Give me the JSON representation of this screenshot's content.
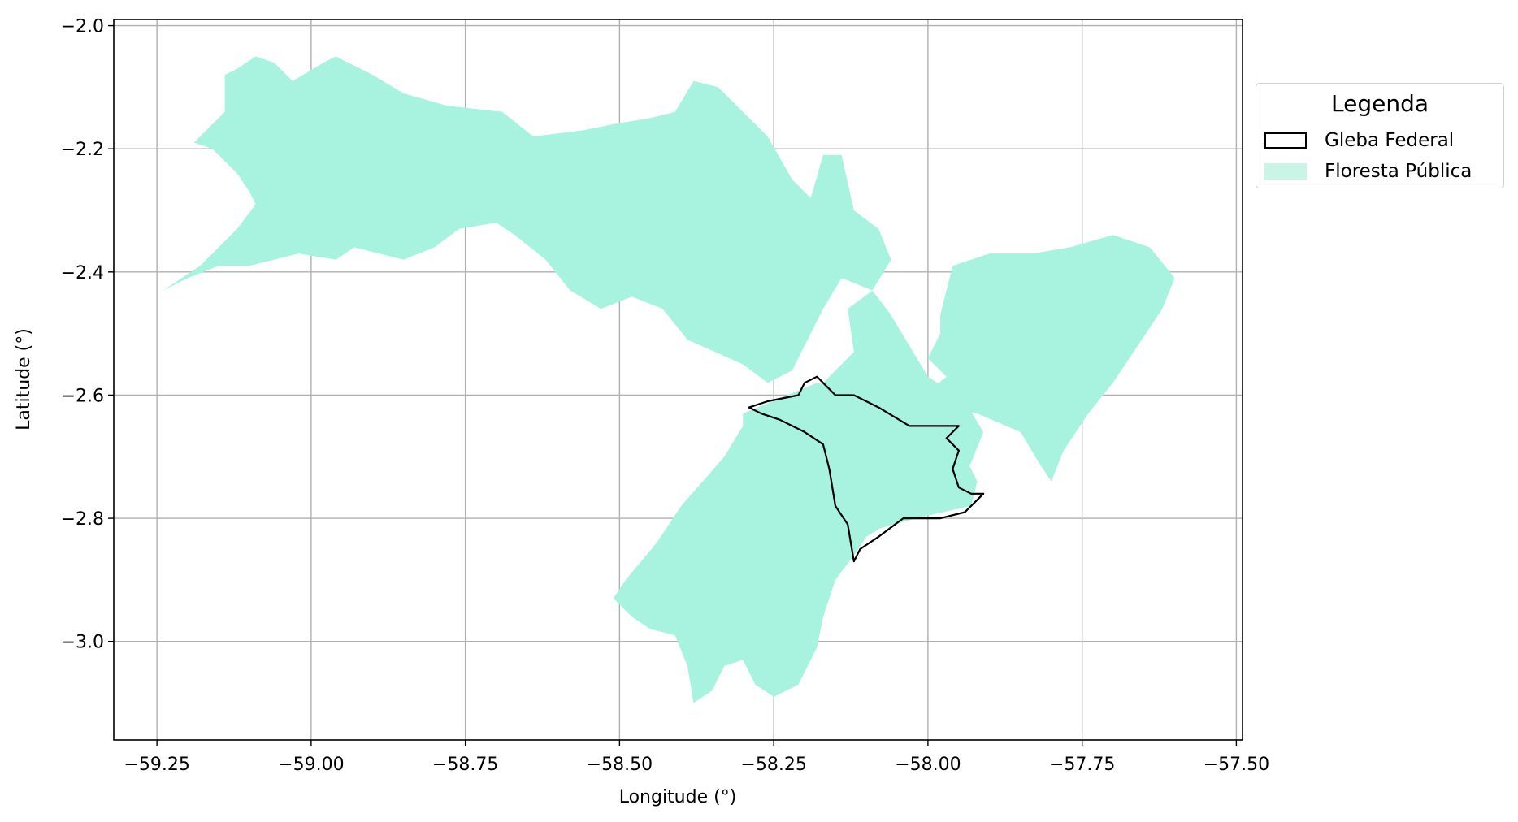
{
  "chart_data": {
    "type": "map",
    "xlabel": "Longitude (°)",
    "ylabel": "Latitude (°)",
    "xlim": [
      -59.32,
      -57.49
    ],
    "ylim": [
      -3.16,
      -1.99
    ],
    "x_ticks": [
      {
        "value": -59.25,
        "label": "−59.25"
      },
      {
        "value": -59.0,
        "label": "−59.00"
      },
      {
        "value": -58.75,
        "label": "−58.75"
      },
      {
        "value": -58.5,
        "label": "−58.50"
      },
      {
        "value": -58.25,
        "label": "−58.25"
      },
      {
        "value": -58.0,
        "label": "−58.00"
      },
      {
        "value": -57.75,
        "label": "−57.75"
      },
      {
        "value": -57.5,
        "label": "−57.50"
      }
    ],
    "y_ticks": [
      {
        "value": -2.0,
        "label": "−2.0"
      },
      {
        "value": -2.2,
        "label": "−2.2"
      },
      {
        "value": -2.4,
        "label": "−2.4"
      },
      {
        "value": -2.6,
        "label": "−2.6"
      },
      {
        "value": -2.8,
        "label": "−2.8"
      },
      {
        "value": -3.0,
        "label": "−3.0"
      }
    ],
    "grid": true,
    "legend_placement": "outside-right-top",
    "legend": {
      "title": "Legenda",
      "entries": [
        {
          "label": "Gleba Federal",
          "style": "outline",
          "color": "#000000"
        },
        {
          "label": "Floresta Pública",
          "style": "fill",
          "color": "#c8f5e6"
        }
      ]
    },
    "layers": [
      {
        "name": "Floresta Pública",
        "fill_color": "#a8f3df",
        "polygons": [
          [
            [
              -59.24,
              -2.43
            ],
            [
              -59.18,
              -2.39
            ],
            [
              -59.12,
              -2.33
            ],
            [
              -59.09,
              -2.29
            ],
            [
              -59.1,
              -2.27
            ],
            [
              -59.12,
              -2.24
            ],
            [
              -59.16,
              -2.2
            ],
            [
              -59.19,
              -2.19
            ],
            [
              -59.14,
              -2.14
            ],
            [
              -59.14,
              -2.08
            ],
            [
              -59.12,
              -2.07
            ],
            [
              -59.09,
              -2.05
            ],
            [
              -59.06,
              -2.06
            ],
            [
              -59.03,
              -2.09
            ],
            [
              -58.98,
              -2.06
            ],
            [
              -58.96,
              -2.05
            ],
            [
              -58.9,
              -2.08
            ],
            [
              -58.85,
              -2.11
            ],
            [
              -58.78,
              -2.13
            ],
            [
              -58.69,
              -2.14
            ],
            [
              -58.64,
              -2.18
            ],
            [
              -58.56,
              -2.17
            ],
            [
              -58.51,
              -2.16
            ],
            [
              -58.45,
              -2.15
            ],
            [
              -58.41,
              -2.14
            ],
            [
              -58.38,
              -2.09
            ],
            [
              -58.34,
              -2.1
            ],
            [
              -58.3,
              -2.14
            ],
            [
              -58.26,
              -2.18
            ],
            [
              -58.22,
              -2.25
            ],
            [
              -58.19,
              -2.28
            ],
            [
              -58.17,
              -2.21
            ],
            [
              -58.14,
              -2.21
            ],
            [
              -58.12,
              -2.3
            ],
            [
              -58.08,
              -2.33
            ],
            [
              -58.06,
              -2.38
            ],
            [
              -58.09,
              -2.43
            ],
            [
              -58.13,
              -2.46
            ],
            [
              -58.12,
              -2.53
            ],
            [
              -58.17,
              -2.58
            ],
            [
              -58.2,
              -2.6
            ],
            [
              -58.27,
              -2.62
            ],
            [
              -58.3,
              -2.65
            ],
            [
              -58.33,
              -2.7
            ],
            [
              -58.4,
              -2.78
            ],
            [
              -58.44,
              -2.84
            ],
            [
              -58.49,
              -2.9
            ],
            [
              -58.51,
              -2.93
            ],
            [
              -58.48,
              -2.96
            ],
            [
              -58.45,
              -2.98
            ],
            [
              -58.41,
              -2.99
            ],
            [
              -58.39,
              -3.04
            ],
            [
              -58.38,
              -3.1
            ],
            [
              -58.35,
              -3.08
            ],
            [
              -58.33,
              -3.04
            ],
            [
              -58.3,
              -3.03
            ],
            [
              -58.28,
              -3.07
            ],
            [
              -58.25,
              -3.09
            ],
            [
              -58.21,
              -3.07
            ],
            [
              -58.18,
              -3.01
            ],
            [
              -58.17,
              -2.96
            ],
            [
              -58.15,
              -2.9
            ],
            [
              -58.12,
              -2.86
            ],
            [
              -58.1,
              -2.83
            ],
            [
              -58.05,
              -2.8
            ],
            [
              -57.99,
              -2.79
            ],
            [
              -57.96,
              -2.76
            ],
            [
              -57.93,
              -2.71
            ],
            [
              -57.91,
              -2.66
            ],
            [
              -57.94,
              -2.61
            ],
            [
              -58.0,
              -2.57
            ],
            [
              -58.03,
              -2.52
            ],
            [
              -58.06,
              -2.47
            ],
            [
              -58.09,
              -2.43
            ],
            [
              -58.14,
              -2.41
            ],
            [
              -58.17,
              -2.46
            ],
            [
              -58.22,
              -2.56
            ],
            [
              -58.26,
              -2.58
            ],
            [
              -58.3,
              -2.55
            ],
            [
              -58.39,
              -2.51
            ],
            [
              -58.43,
              -2.46
            ],
            [
              -58.48,
              -2.44
            ],
            [
              -58.53,
              -2.46
            ],
            [
              -58.58,
              -2.43
            ],
            [
              -58.62,
              -2.38
            ],
            [
              -58.67,
              -2.34
            ],
            [
              -58.7,
              -2.32
            ],
            [
              -58.76,
              -2.33
            ],
            [
              -58.8,
              -2.36
            ],
            [
              -58.85,
              -2.38
            ],
            [
              -58.93,
              -2.36
            ],
            [
              -58.96,
              -2.38
            ],
            [
              -59.02,
              -2.37
            ],
            [
              -59.06,
              -2.38
            ],
            [
              -59.1,
              -2.39
            ],
            [
              -59.15,
              -2.39
            ],
            [
              -59.2,
              -2.41
            ]
          ],
          [
            [
              -58.3,
              -2.63
            ],
            [
              -58.18,
              -2.58
            ],
            [
              -58.1,
              -2.6
            ],
            [
              -58.02,
              -2.63
            ],
            [
              -57.95,
              -2.62
            ],
            [
              -57.95,
              -2.68
            ],
            [
              -57.92,
              -2.74
            ],
            [
              -57.93,
              -2.78
            ],
            [
              -58.02,
              -2.8
            ],
            [
              -58.09,
              -2.82
            ],
            [
              -58.14,
              -2.87
            ],
            [
              -58.2,
              -2.98
            ],
            [
              -58.24,
              -3.02
            ],
            [
              -58.22,
              -3.07
            ],
            [
              -58.26,
              -3.08
            ],
            [
              -58.28,
              -3.03
            ],
            [
              -58.25,
              -2.95
            ],
            [
              -58.24,
              -2.88
            ],
            [
              -58.28,
              -2.83
            ],
            [
              -58.3,
              -2.76
            ],
            [
              -58.3,
              -2.7
            ]
          ],
          [
            [
              -57.98,
              -2.47
            ],
            [
              -57.96,
              -2.39
            ],
            [
              -57.9,
              -2.37
            ],
            [
              -57.83,
              -2.37
            ],
            [
              -57.77,
              -2.36
            ],
            [
              -57.7,
              -2.34
            ],
            [
              -57.64,
              -2.36
            ],
            [
              -57.6,
              -2.41
            ],
            [
              -57.62,
              -2.46
            ],
            [
              -57.66,
              -2.52
            ],
            [
              -57.7,
              -2.58
            ],
            [
              -57.74,
              -2.63
            ],
            [
              -57.78,
              -2.69
            ],
            [
              -57.8,
              -2.74
            ],
            [
              -57.82,
              -2.71
            ],
            [
              -57.85,
              -2.66
            ],
            [
              -57.92,
              -2.63
            ],
            [
              -57.97,
              -2.62
            ],
            [
              -58.02,
              -2.61
            ],
            [
              -57.97,
              -2.57
            ],
            [
              -58.0,
              -2.54
            ],
            [
              -57.98,
              -2.5
            ]
          ]
        ]
      },
      {
        "name": "Gleba Federal",
        "outline_color": "#000000",
        "polygons": [
          [
            [
              -58.29,
              -2.62
            ],
            [
              -58.26,
              -2.61
            ],
            [
              -58.21,
              -2.6
            ],
            [
              -58.2,
              -2.58
            ],
            [
              -58.18,
              -2.57
            ],
            [
              -58.15,
              -2.6
            ],
            [
              -58.12,
              -2.6
            ],
            [
              -58.08,
              -2.62
            ],
            [
              -58.03,
              -2.65
            ],
            [
              -57.98,
              -2.65
            ],
            [
              -57.95,
              -2.65
            ],
            [
              -57.97,
              -2.67
            ],
            [
              -57.95,
              -2.69
            ],
            [
              -57.96,
              -2.72
            ],
            [
              -57.95,
              -2.75
            ],
            [
              -57.93,
              -2.76
            ],
            [
              -57.91,
              -2.76
            ],
            [
              -57.94,
              -2.79
            ],
            [
              -57.98,
              -2.8
            ],
            [
              -58.04,
              -2.8
            ],
            [
              -58.08,
              -2.83
            ],
            [
              -58.11,
              -2.85
            ],
            [
              -58.12,
              -2.87
            ],
            [
              -58.13,
              -2.81
            ],
            [
              -58.15,
              -2.78
            ],
            [
              -58.16,
              -2.72
            ],
            [
              -58.17,
              -2.68
            ],
            [
              -58.2,
              -2.66
            ],
            [
              -58.24,
              -2.64
            ],
            [
              -58.27,
              -2.63
            ],
            [
              -58.29,
              -2.62
            ]
          ]
        ]
      }
    ]
  }
}
